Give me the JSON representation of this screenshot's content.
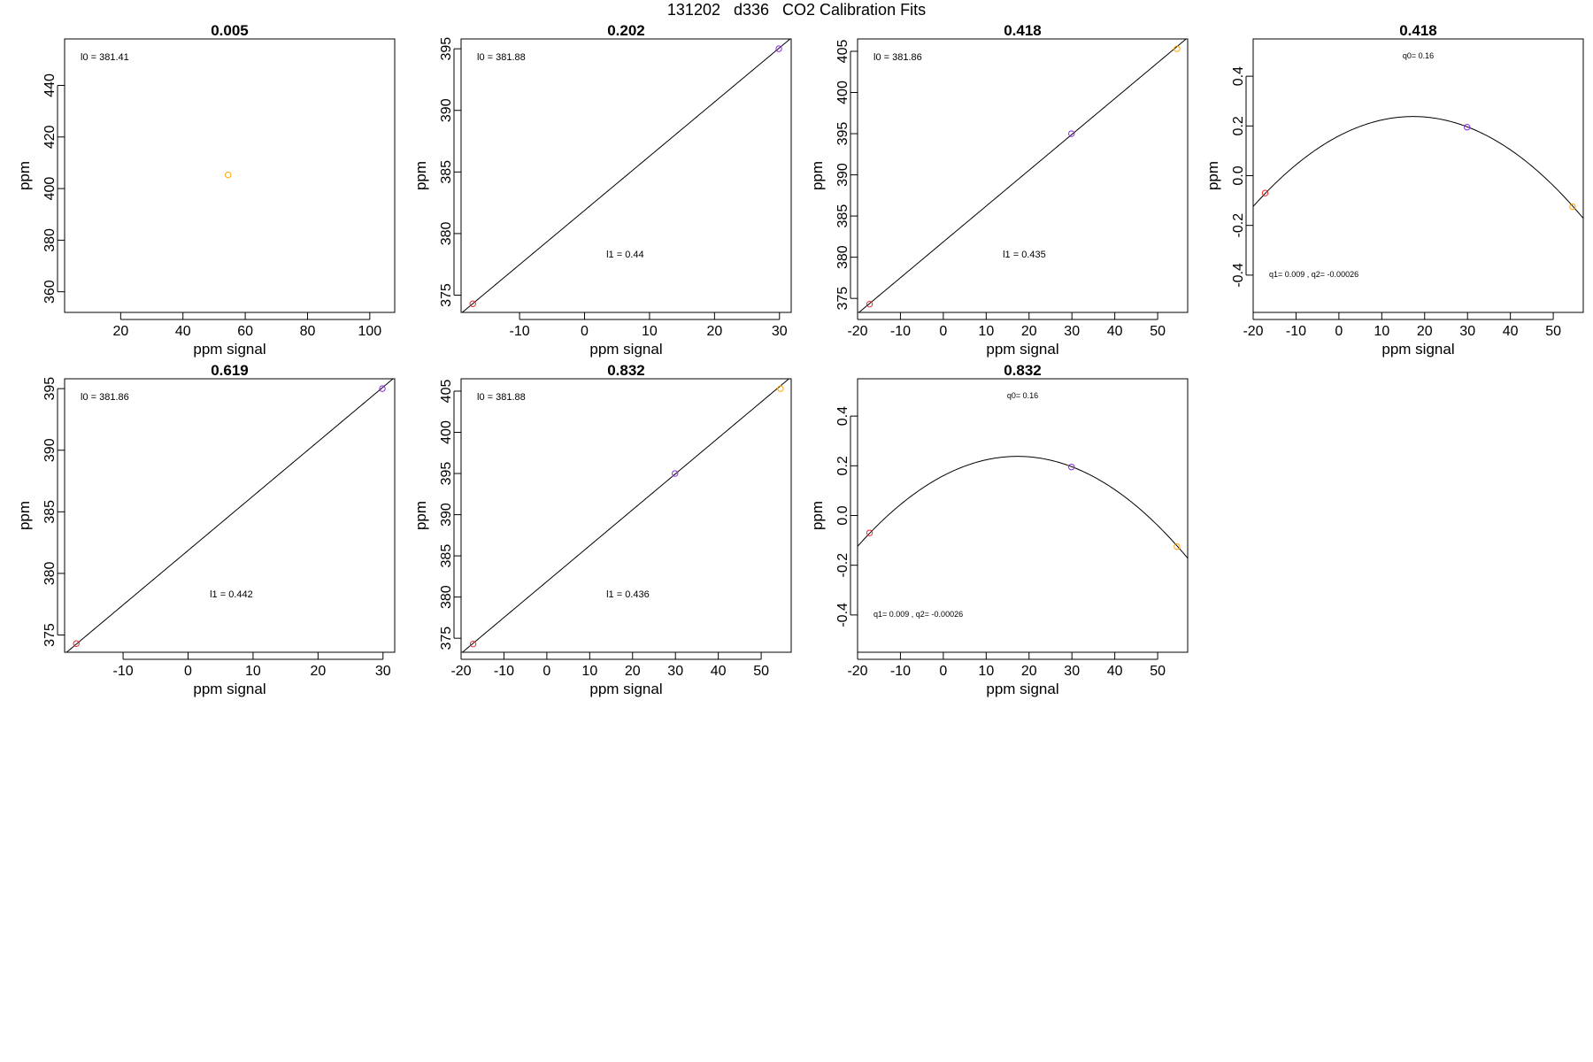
{
  "figure_title": "131202   d336   CO2 Calibration Fits",
  "colors": {
    "red": "#e8262b",
    "purple": "#8a2be2",
    "orange": "#ffa500",
    "line": "#000000"
  },
  "chart_data": [
    {
      "title": "0.005",
      "type": "scatter",
      "xlabel": "ppm signal",
      "ylabel": "ppm",
      "xlim": [
        2,
        108
      ],
      "ylim": [
        352,
        458
      ],
      "xticks": [
        20,
        40,
        60,
        80,
        100
      ],
      "xtick_labels": [
        "20",
        "40",
        "60",
        "80",
        "100"
      ],
      "yticks": [
        360,
        380,
        400,
        420,
        440
      ],
      "ytick_labels": [
        "360",
        "380",
        "400",
        "420",
        "440"
      ],
      "points": [
        {
          "x": 54.5,
          "y": 405.3,
          "color": "orange"
        }
      ],
      "annotations": [
        {
          "text": "l0 =  381.41",
          "pos": "top-left"
        }
      ],
      "fit": null
    },
    {
      "title": "0.202",
      "type": "scatter",
      "xlabel": "ppm signal",
      "ylabel": "ppm",
      "xlim": [
        -19,
        31.8
      ],
      "ylim": [
        373.6,
        395.8
      ],
      "xticks": [
        -10,
        0,
        10,
        20,
        30
      ],
      "xtick_labels": [
        "-10",
        "0",
        "10",
        "20",
        "30"
      ],
      "yticks": [
        375,
        380,
        385,
        390,
        395
      ],
      "ytick_labels": [
        "375",
        "380",
        "385",
        "390",
        "395"
      ],
      "points": [
        {
          "x": -17.2,
          "y": 374.3,
          "color": "red"
        },
        {
          "x": 29.9,
          "y": 395.0,
          "color": "purple"
        }
      ],
      "annotations": [
        {
          "text": "l0 =  381.88",
          "pos": "top-left"
        },
        {
          "text": "l1 =  0.44",
          "pos": "lower-middle"
        }
      ],
      "fit": {
        "kind": "linear",
        "intercept": 381.88,
        "slope": 0.44
      }
    },
    {
      "title": "0.418",
      "type": "scatter",
      "xlabel": "ppm signal",
      "ylabel": "ppm",
      "xlim": [
        -20,
        57
      ],
      "ylim": [
        373.3,
        406.5
      ],
      "xticks": [
        -20,
        -10,
        0,
        10,
        20,
        30,
        40,
        50
      ],
      "xtick_labels": [
        "-20",
        "-10",
        "0",
        "10",
        "20",
        "30",
        "40",
        "50"
      ],
      "yticks": [
        375,
        380,
        385,
        390,
        395,
        400,
        405
      ],
      "ytick_labels": [
        "375",
        "380",
        "385",
        "390",
        "395",
        "400",
        "405"
      ],
      "points": [
        {
          "x": -17.2,
          "y": 374.3,
          "color": "red"
        },
        {
          "x": 29.9,
          "y": 395.0,
          "color": "purple"
        },
        {
          "x": 54.5,
          "y": 405.3,
          "color": "orange"
        }
      ],
      "annotations": [
        {
          "text": "l0 =  381.86",
          "pos": "top-left"
        },
        {
          "text": "l1 =  0.435",
          "pos": "lower-middle"
        }
      ],
      "fit": {
        "kind": "linear",
        "intercept": 381.86,
        "slope": 0.435
      }
    },
    {
      "title": "0.418",
      "type": "scatter",
      "xlabel": "ppm signal",
      "ylabel": "ppm",
      "xlim": [
        -20,
        57
      ],
      "ylim": [
        -0.55,
        0.55
      ],
      "xticks": [
        -20,
        -10,
        0,
        10,
        20,
        30,
        40,
        50
      ],
      "xtick_labels": [
        "-20",
        "-10",
        "0",
        "10",
        "20",
        "30",
        "40",
        "50"
      ],
      "yticks": [
        -0.4,
        -0.2,
        0.0,
        0.2,
        0.4
      ],
      "ytick_labels": [
        "-0.4",
        "-0.2",
        "0.0",
        "0.2",
        "0.4"
      ],
      "points": [
        {
          "x": -17.2,
          "y": -0.07,
          "color": "red"
        },
        {
          "x": 29.9,
          "y": 0.195,
          "color": "purple"
        },
        {
          "x": 54.5,
          "y": -0.125,
          "color": "orange"
        }
      ],
      "annotations": [
        {
          "text": "q0= 0.16",
          "pos": "top-middle"
        },
        {
          "text": "q1= 0.009 , q2= -0.00026",
          "pos": "bottom-left"
        }
      ],
      "fit": {
        "kind": "quadratic",
        "q0": 0.16,
        "q1": 0.009,
        "q2": -0.00026
      }
    },
    {
      "title": "0.619",
      "type": "scatter",
      "xlabel": "ppm signal",
      "ylabel": "ppm",
      "xlim": [
        -19,
        31.8
      ],
      "ylim": [
        373.6,
        395.8
      ],
      "xticks": [
        -10,
        0,
        10,
        20,
        30
      ],
      "xtick_labels": [
        "-10",
        "0",
        "10",
        "20",
        "30"
      ],
      "yticks": [
        375,
        380,
        385,
        390,
        395
      ],
      "ytick_labels": [
        "375",
        "380",
        "385",
        "390",
        "395"
      ],
      "points": [
        {
          "x": -17.2,
          "y": 374.3,
          "color": "red"
        },
        {
          "x": 29.9,
          "y": 395.0,
          "color": "purple"
        }
      ],
      "annotations": [
        {
          "text": "l0 =  381.86",
          "pos": "top-left"
        },
        {
          "text": "l1 =  0.442",
          "pos": "lower-middle"
        }
      ],
      "fit": {
        "kind": "linear",
        "intercept": 381.86,
        "slope": 0.442
      }
    },
    {
      "title": "0.832",
      "type": "scatter",
      "xlabel": "ppm signal",
      "ylabel": "ppm",
      "xlim": [
        -20,
        57
      ],
      "ylim": [
        373.3,
        406.5
      ],
      "xticks": [
        -20,
        -10,
        0,
        10,
        20,
        30,
        40,
        50
      ],
      "xtick_labels": [
        "-20",
        "-10",
        "0",
        "10",
        "20",
        "30",
        "40",
        "50"
      ],
      "yticks": [
        375,
        380,
        385,
        390,
        395,
        400,
        405
      ],
      "ytick_labels": [
        "375",
        "380",
        "385",
        "390",
        "395",
        "400",
        "405"
      ],
      "points": [
        {
          "x": -17.2,
          "y": 374.3,
          "color": "red"
        },
        {
          "x": 29.9,
          "y": 395.0,
          "color": "purple"
        },
        {
          "x": 54.5,
          "y": 405.3,
          "color": "orange"
        }
      ],
      "annotations": [
        {
          "text": "l0 =  381.88",
          "pos": "top-left"
        },
        {
          "text": "l1 =  0.436",
          "pos": "lower-middle"
        }
      ],
      "fit": {
        "kind": "linear",
        "intercept": 381.88,
        "slope": 0.436
      }
    },
    {
      "title": "0.832",
      "type": "scatter",
      "xlabel": "ppm signal",
      "ylabel": "ppm",
      "xlim": [
        -20,
        57
      ],
      "ylim": [
        -0.55,
        0.55
      ],
      "xticks": [
        -20,
        -10,
        0,
        10,
        20,
        30,
        40,
        50
      ],
      "xtick_labels": [
        "-20",
        "-10",
        "0",
        "10",
        "20",
        "30",
        "40",
        "50"
      ],
      "yticks": [
        -0.4,
        -0.2,
        0.0,
        0.2,
        0.4
      ],
      "ytick_labels": [
        "-0.4",
        "-0.2",
        "0.0",
        "0.2",
        "0.4"
      ],
      "points": [
        {
          "x": -17.2,
          "y": -0.07,
          "color": "red"
        },
        {
          "x": 29.9,
          "y": 0.195,
          "color": "purple"
        },
        {
          "x": 54.5,
          "y": -0.125,
          "color": "orange"
        }
      ],
      "annotations": [
        {
          "text": "q0= 0.16",
          "pos": "top-middle"
        },
        {
          "text": "q1= 0.009 , q2= -0.00026",
          "pos": "bottom-left"
        }
      ],
      "fit": {
        "kind": "quadratic",
        "q0": 0.16,
        "q1": 0.009,
        "q2": -0.00026
      }
    }
  ]
}
